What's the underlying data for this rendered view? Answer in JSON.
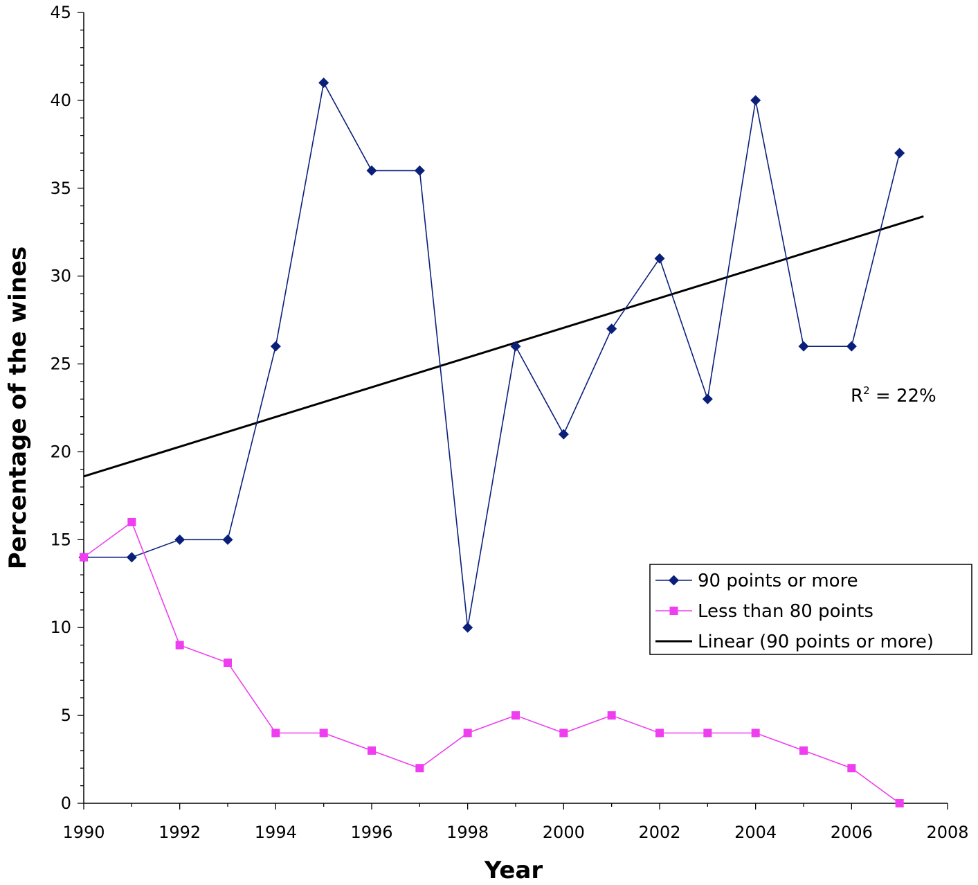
{
  "chart_data": {
    "type": "line",
    "title": "",
    "xlabel": "Year",
    "ylabel": "Percentage of the wines",
    "xlim": [
      1990,
      2008
    ],
    "ylim": [
      0,
      45
    ],
    "x_ticks": [
      1990,
      1992,
      1994,
      1996,
      1998,
      2000,
      2002,
      2004,
      2006,
      2008
    ],
    "x_tick_labels": [
      "1990",
      "1992",
      "1994",
      "1996",
      "1998",
      "2000",
      "2002",
      "2004",
      "2006",
      "2008"
    ],
    "y_ticks": [
      0,
      5,
      10,
      15,
      20,
      25,
      30,
      35,
      40,
      45
    ],
    "y_tick_labels": [
      "0",
      "5",
      "10",
      "15",
      "20",
      "25",
      "30",
      "35",
      "40",
      "45"
    ],
    "grid": false,
    "legend_position": "right",
    "series": [
      {
        "name": "90 points or more",
        "legend_label": "90 points or more",
        "color": "#0a1f7a",
        "marker": "diamond",
        "x": [
          1990,
          1991,
          1992,
          1993,
          1994,
          1995,
          1996,
          1997,
          1998,
          1999,
          2000,
          2001,
          2002,
          2003,
          2004,
          2005,
          2006,
          2007
        ],
        "values": [
          14,
          14,
          15,
          15,
          26,
          41,
          36,
          36,
          10,
          26,
          21,
          27,
          31,
          23,
          40,
          26,
          26,
          37
        ]
      },
      {
        "name": "Less than 80 points",
        "legend_label": "Less than 80 points",
        "color": "#ee3ef0",
        "marker": "square",
        "x": [
          1990,
          1991,
          1992,
          1993,
          1994,
          1995,
          1996,
          1997,
          1998,
          1999,
          2000,
          2001,
          2002,
          2003,
          2004,
          2005,
          2006,
          2007
        ],
        "values": [
          14,
          16,
          9,
          8,
          4,
          4,
          3,
          2,
          4,
          5,
          4,
          5,
          4,
          4,
          4,
          3,
          2,
          0
        ]
      }
    ],
    "trendline": {
      "name": "Linear (90 points or more)",
      "legend_label": "Linear (90 points or more)",
      "color": "#000000",
      "x": [
        1990,
        2007.5
      ],
      "values": [
        18.6,
        33.4
      ]
    },
    "annotation": {
      "text_base": "R",
      "text_sup": "2",
      "text_rest": " = 22%"
    }
  }
}
